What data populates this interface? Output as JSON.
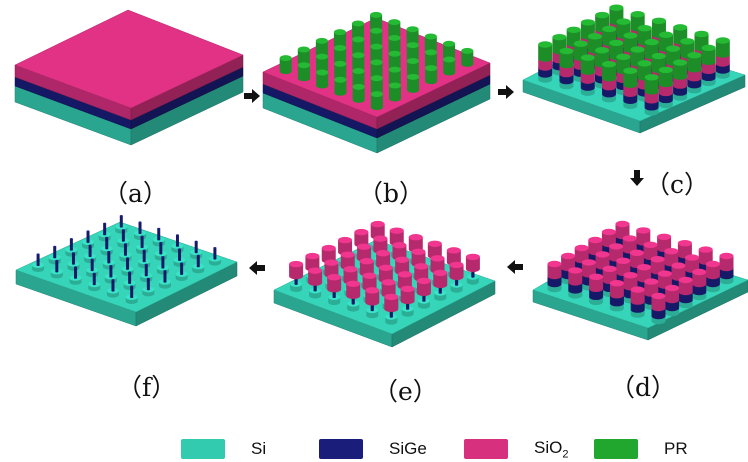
{
  "colors": {
    "si": "#33cbb0",
    "sige": "#1a1d7a",
    "sio2": "#d6307f",
    "pr": "#21a62e"
  },
  "panels": [
    {
      "id": "a",
      "label": "（a）"
    },
    {
      "id": "b",
      "label": "（b）"
    },
    {
      "id": "c",
      "label": "（c）"
    },
    {
      "id": "d",
      "label": "（d）"
    },
    {
      "id": "e",
      "label": "（e）"
    },
    {
      "id": "f",
      "label": "（f）"
    }
  ],
  "legend": [
    {
      "key": "si",
      "label": "Si"
    },
    {
      "key": "sige",
      "label": "SiGe"
    },
    {
      "key": "sio2",
      "label": "SiO",
      "sub": "2"
    },
    {
      "key": "pr",
      "label": "PR"
    }
  ]
}
